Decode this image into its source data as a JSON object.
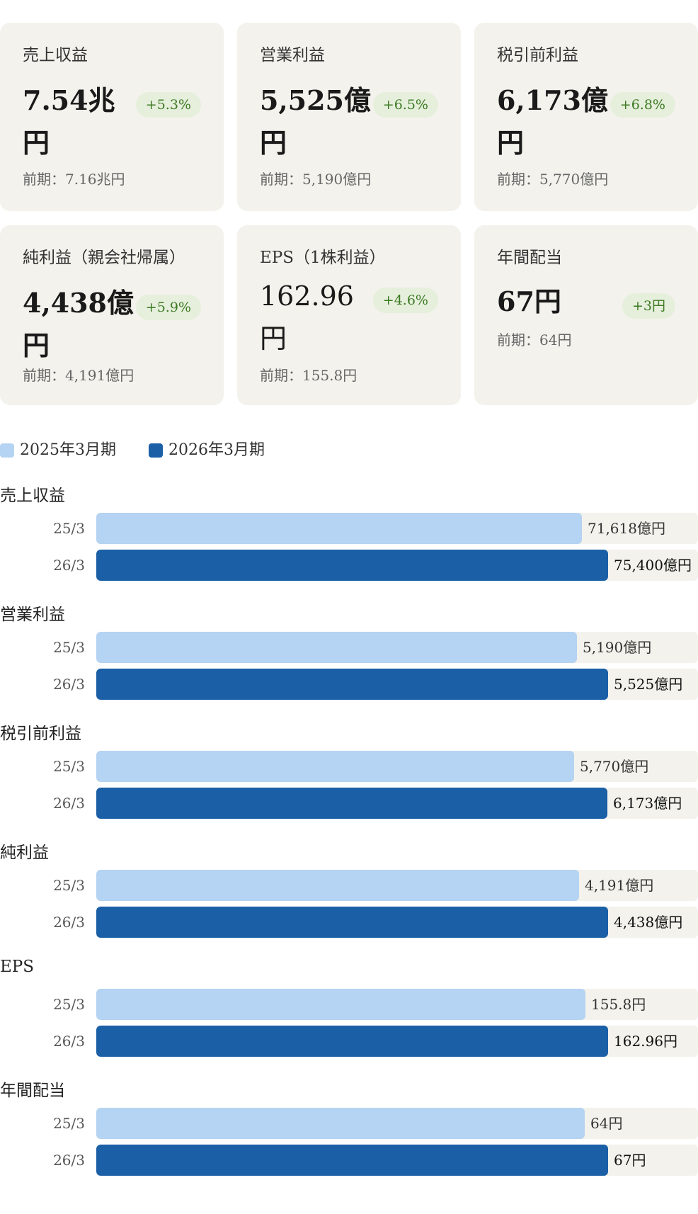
{
  "cards": [
    {
      "label": "売上収益",
      "value": "7.54兆円",
      "delta": "+5.3%",
      "prev": "前期：7.16兆円"
    },
    {
      "label": "営業利益",
      "value": "5,525億円",
      "delta": "+6.5%",
      "prev": "前期：5,190億円"
    },
    {
      "label": "税引前利益",
      "value": "6,173億円",
      "delta": "+6.8%",
      "prev": "前期：5,770億円"
    },
    {
      "label": "純利益（親会社帰属）",
      "value": "4,438億円",
      "delta": "+5.9%",
      "prev": "前期：4,191億円"
    },
    {
      "label": "EPS（1株利益）",
      "value": "162.96円",
      "delta": "+4.6%",
      "prev": "前期：155.8円"
    },
    {
      "label": "年間配当",
      "value": "67円",
      "delta": "+3円",
      "prev": "前期：64円"
    }
  ],
  "legend": {
    "prev": "2025年3月期",
    "cur": "2026年3月期"
  },
  "colors": {
    "prev": "#b5d3f2",
    "cur": "#1b5fa6",
    "card_bg": "#f3f2ec",
    "delta_bg": "#e6efdc",
    "delta_text": "#3c7a22"
  },
  "chart_data": {
    "type": "bar",
    "orientation": "horizontal",
    "categories": [
      "売上収益",
      "営業利益",
      "税引前利益",
      "純利益",
      "EPS",
      "年間配当"
    ],
    "row_labels": [
      "25/3",
      "26/3"
    ],
    "series": [
      {
        "name": "2025年3月期",
        "values": [
          71618,
          5190,
          5770,
          4191,
          155.8,
          64
        ],
        "labels": [
          "71,618億円",
          "5,190億円",
          "5,770億円",
          "4,191億円",
          "155.8円",
          "64円"
        ]
      },
      {
        "name": "2026年3月期",
        "values": [
          75400,
          5525,
          6173,
          4438,
          162.96,
          67
        ],
        "labels": [
          "75,400億円",
          "5,525億円",
          "6,173億円",
          "4,438億円",
          "162.96円",
          "67円"
        ]
      }
    ]
  }
}
